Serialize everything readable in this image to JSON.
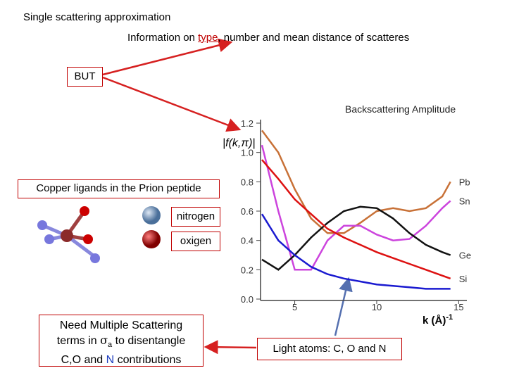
{
  "header": {
    "title": "Single scattering approximation"
  },
  "info": {
    "before": "Information on ",
    "highlight": "type",
    "after": ", number and mean distance of scatteres"
  },
  "but_box": {
    "label": "BUT"
  },
  "ligands": {
    "label": "Copper ligands in the Prion peptide",
    "legend": [
      {
        "label": "nitrogen",
        "color": "#5a7fb5"
      },
      {
        "label": "oxigen",
        "color": "#cc0000"
      }
    ]
  },
  "note_box": {
    "line1": "Need Multiple Scattering",
    "line2": {
      "a": "terms in ",
      "sigma": "σ",
      "sub": "a",
      "b": " to disentangle"
    },
    "line3": {
      "a": "C,O and ",
      "n": "N",
      "b": " contributions"
    }
  },
  "light_box": {
    "label": "Light atoms: C, O and N"
  },
  "chart_data": {
    "type": "line",
    "title": "Backscattering Amplitude",
    "y_label": "|f(k,π)|",
    "x_label": "k (Å)",
    "x_label_sup": "-1",
    "x": [
      3,
      4,
      5,
      6,
      7,
      8,
      9,
      10,
      11,
      12,
      13,
      14,
      14.5
    ],
    "xlim": [
      3,
      15.5
    ],
    "xticks": [
      5,
      10,
      15
    ],
    "ylim": [
      0,
      1.2
    ],
    "yticks": [
      {
        "value": 0,
        "label": "0.0"
      },
      0.2,
      0.4,
      0.6,
      0.8,
      {
        "value": 1,
        "label": "1.0"
      },
      1.2
    ],
    "series": [
      {
        "name": "Pb",
        "color": "#c87137",
        "values": [
          1.15,
          1.0,
          0.75,
          0.55,
          0.45,
          0.45,
          0.52,
          0.6,
          0.62,
          0.6,
          0.62,
          0.7,
          0.8
        ]
      },
      {
        "name": "Sn",
        "color": "#cc44dd",
        "values": [
          1.05,
          0.6,
          0.2,
          0.2,
          0.4,
          0.5,
          0.5,
          0.44,
          0.4,
          0.41,
          0.5,
          0.62,
          0.67
        ]
      },
      {
        "name": "Ge",
        "color": "#111111",
        "values": [
          0.27,
          0.2,
          0.3,
          0.42,
          0.52,
          0.6,
          0.63,
          0.62,
          0.55,
          0.45,
          0.37,
          0.32,
          0.3
        ]
      },
      {
        "name": "Si",
        "color": "#dd1111",
        "values": [
          0.95,
          0.82,
          0.68,
          0.58,
          0.48,
          0.42,
          0.37,
          0.32,
          0.28,
          0.24,
          0.2,
          0.16,
          0.14
        ]
      },
      {
        "name": null,
        "color": "#1a1ad0",
        "values": [
          0.58,
          0.4,
          0.3,
          0.22,
          0.17,
          0.14,
          0.12,
          0.1,
          0.09,
          0.08,
          0.07,
          0.07,
          0.07
        ]
      }
    ]
  }
}
